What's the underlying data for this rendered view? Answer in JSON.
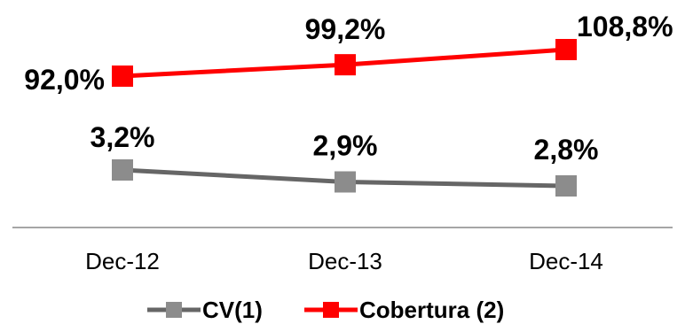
{
  "chart_data": {
    "type": "line",
    "categories": [
      "Dec-12",
      "Dec-13",
      "Dec-14"
    ],
    "series": [
      {
        "name": "CV(1)",
        "values": [
          3.2,
          2.9,
          2.8
        ],
        "labels": [
          "3,2%",
          "2,9%",
          "2,8%"
        ],
        "color": "#666666",
        "marker_color": "#8c8c8c"
      },
      {
        "name": "Cobertura (2)",
        "values": [
          92.0,
          99.2,
          108.8
        ],
        "labels": [
          "92,0%",
          "99,2%",
          "108,8%"
        ],
        "color": "#ff0000",
        "marker_color": "#ff0000"
      }
    ],
    "axis_color": "#a6a6a6",
    "legend_position": "bottom",
    "grid": false
  }
}
